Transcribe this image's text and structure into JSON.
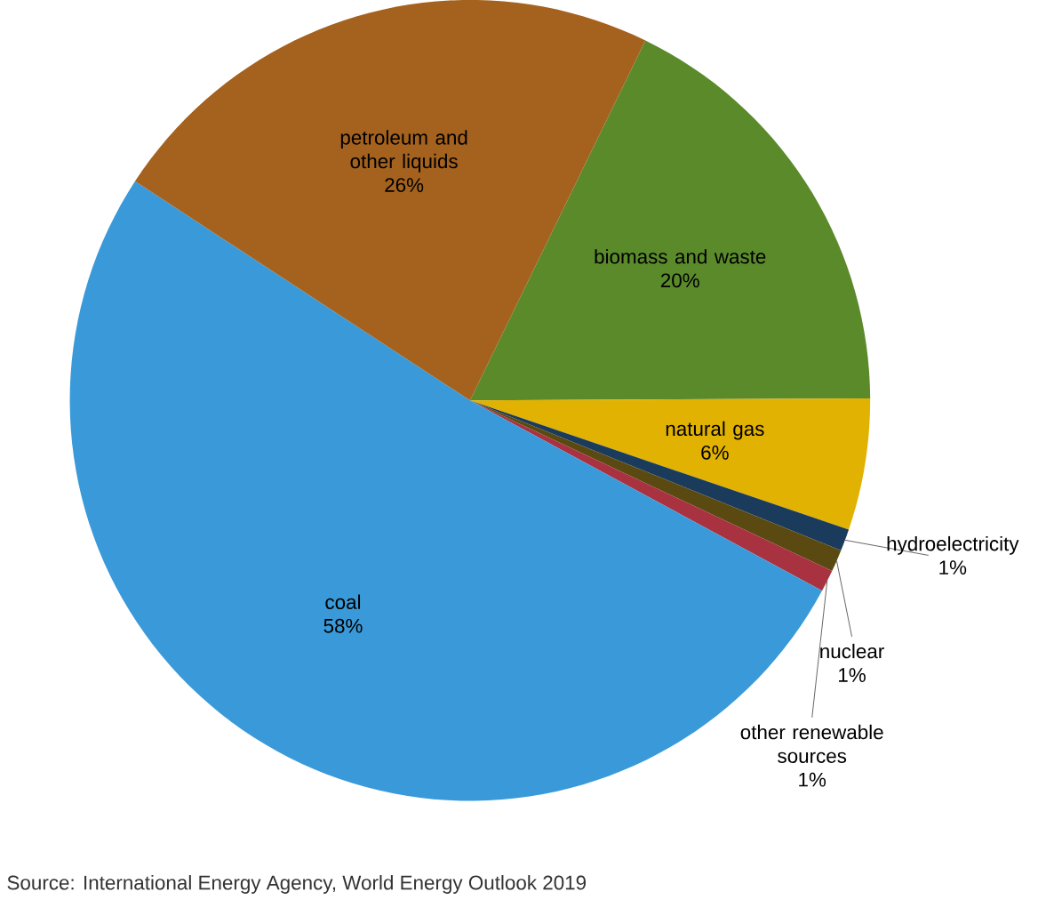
{
  "chart_data": {
    "type": "pie",
    "categories": [
      "biomass and waste",
      "natural gas",
      "hydroelectricity",
      "nuclear",
      "other renewable sources",
      "coal",
      "petroleum and other liquids"
    ],
    "values": [
      20,
      6,
      1,
      1,
      1,
      58,
      26
    ],
    "value_labels": [
      "20%",
      "6%",
      "1%",
      "1%",
      "1%",
      "58%",
      "26%"
    ],
    "colors": [
      "#5b8a2b",
      "#e2b202",
      "#1b3b5c",
      "#5a4a12",
      "#a8323f",
      "#3a9ad9",
      "#a4621e"
    ],
    "annotations": [
      "Source: International Energy Agency, World Energy Outlook 2019"
    ]
  }
}
